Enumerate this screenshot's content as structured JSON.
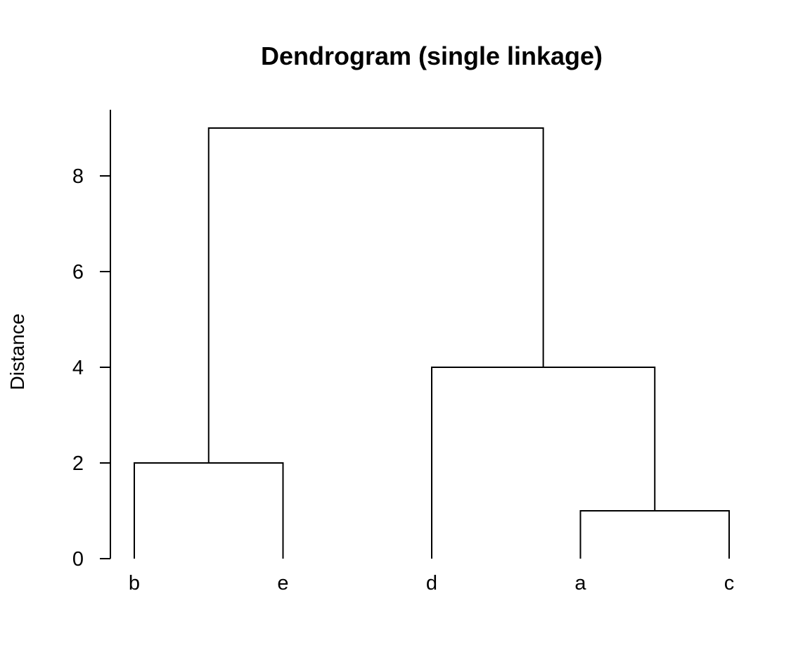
{
  "chart_data": {
    "type": "dendrogram",
    "title": "Dendrogram (single linkage)",
    "xlabel": "",
    "ylabel": "Distance",
    "ylim": [
      0,
      9.4
    ],
    "yticks": [
      0,
      2,
      4,
      6,
      8
    ],
    "leaves": [
      "b",
      "e",
      "d",
      "a",
      "c"
    ],
    "merges": [
      {
        "left": "a",
        "right": "c",
        "height": 1
      },
      {
        "left": "b",
        "right": "e",
        "height": 2
      },
      {
        "left": "d",
        "right": "a+c",
        "height": 4
      },
      {
        "left": "b+e",
        "right": "d+a+c",
        "height": 9
      }
    ],
    "line_color": "#000000",
    "grid": false
  }
}
